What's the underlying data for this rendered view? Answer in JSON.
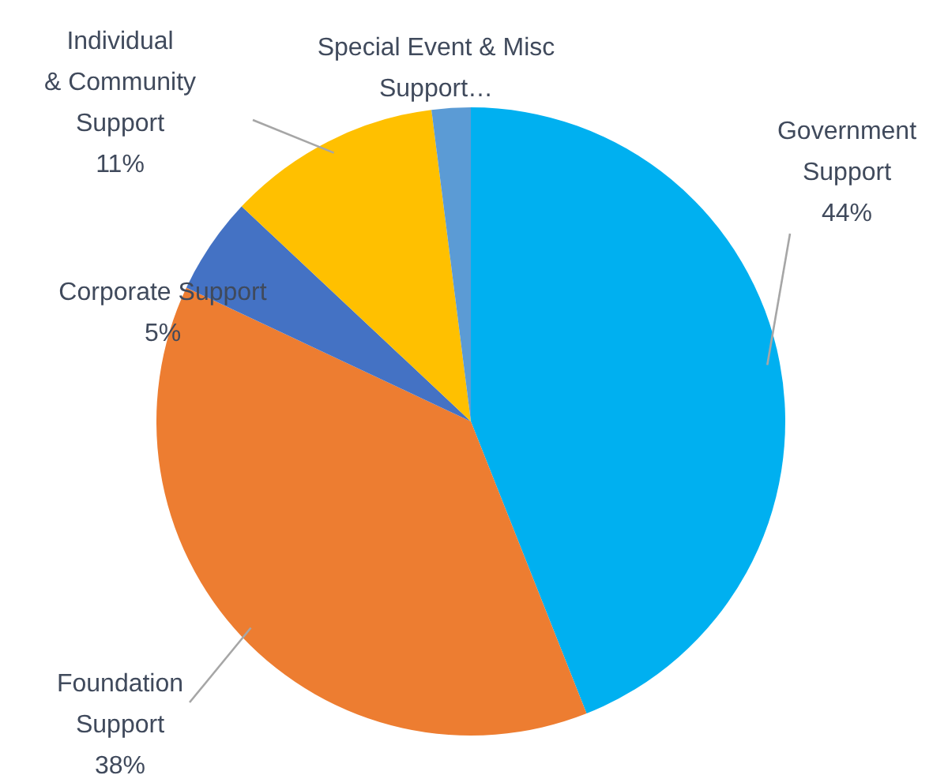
{
  "chart_data": {
    "type": "pie",
    "categories": [
      "Government Support",
      "Foundation Support",
      "Corporate Support",
      "Individual & Community Support",
      "Special Event & Misc Support…"
    ],
    "values": [
      44,
      38,
      5,
      11,
      2
    ],
    "colors": [
      "#00b0f0",
      "#ed7d31",
      "#4472c4",
      "#ffc000",
      "#5b9bd5"
    ],
    "value_labels": [
      "44%",
      "38%",
      "5%",
      "11%",
      null
    ]
  }
}
